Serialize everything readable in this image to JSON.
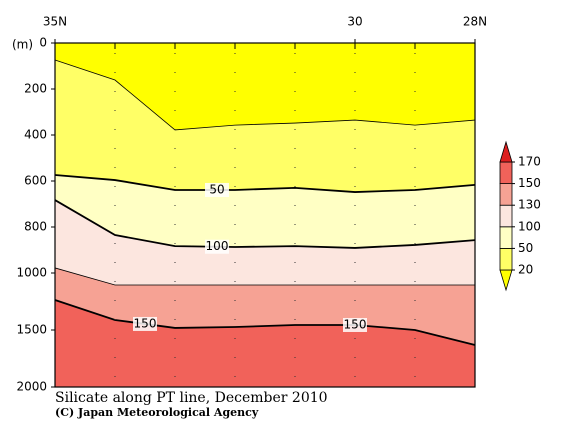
{
  "chart_data": {
    "type": "contour",
    "title": "Silicate along PT line, December 2010",
    "credit": "(C) Japan Meteorological Agency",
    "ylabel": "(m)",
    "x": [
      35,
      34,
      33,
      32,
      31,
      30,
      29,
      28
    ],
    "xlim": [
      35,
      28
    ],
    "xticks": [
      {
        "value": 35,
        "label": "35N"
      },
      30,
      {
        "value": 28,
        "label": "28N"
      }
    ],
    "ylim": [
      0,
      2000
    ],
    "yticks": [
      0,
      200,
      400,
      600,
      800,
      1000,
      1500,
      2000
    ],
    "contours": [
      {
        "level": 20,
        "depths": [
          74,
          161,
          378,
          357,
          348,
          335,
          357,
          335
        ]
      },
      {
        "level": 50,
        "depths": [
          574,
          596,
          639,
          639,
          630,
          648,
          639,
          617
        ]
      },
      {
        "level": 100,
        "depths": [
          683,
          835,
          883,
          887,
          883,
          891,
          878,
          857
        ]
      },
      {
        "level": 130,
        "depths": [
          978,
          1105,
          1105,
          1105,
          1105,
          1105,
          1105,
          1105
        ]
      },
      {
        "level": 150,
        "depths": [
          1237,
          1412,
          1482,
          1474,
          1456,
          1456,
          1500,
          1632
        ]
      }
    ],
    "colorbar_levels": [
      20,
      50,
      100,
      130,
      150,
      170
    ],
    "colors": [
      "#ffff00",
      "#ffff66",
      "#ffffc4",
      "#fce6df",
      "#f6a294",
      "#f1625a",
      "#dd1f1f"
    ]
  }
}
